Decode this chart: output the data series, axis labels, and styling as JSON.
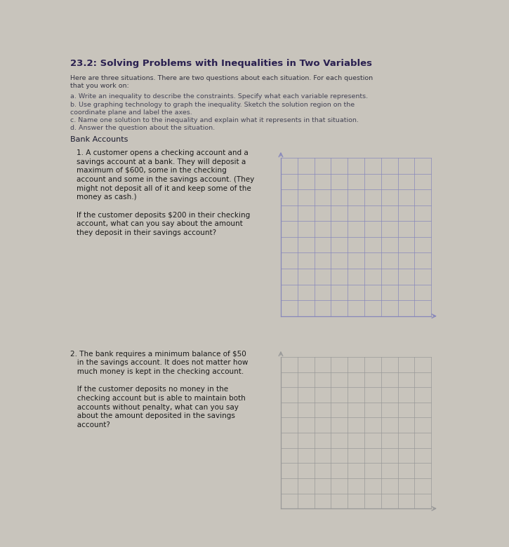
{
  "bg_color": "#c8c4bc",
  "paper_color": "#ededea",
  "title": "23.2: Solving Problems with Inequalities in Two Variables",
  "intro_line1": "Here are three situations. There are two questions about each situation. For each question",
  "intro_line2": "that you work on:",
  "item_a": "a. Write an inequality to describe the constraints. Specify what each variable represents.",
  "item_b1": "b. Use graphing technology to graph the inequality. Sketch the solution region on the",
  "item_b2": "coordinate plane and label the axes.",
  "item_c": "c. Name one solution to the inequality and explain what it represents in that situation.",
  "item_d": "d. Answer the question about the situation.",
  "section": "Bank Accounts",
  "q1_lines": [
    "1. A customer opens a checking account and a",
    "savings account at a bank. They will deposit a",
    "maximum of $600, some in the checking",
    "account and some in the savings account. (They",
    "might not deposit all of it and keep some of the",
    "money as cash.)",
    "",
    "If the customer deposits $200 in their checking",
    "account, what can you say about the amount",
    "they deposit in their savings account?"
  ],
  "q2_lines": [
    "2. The bank requires a minimum balance of $50",
    "   in the savings account. It does not matter how",
    "   much money is kept in the checking account.",
    "",
    "   If the customer deposits no money in the",
    "   checking account but is able to maintain both",
    "   accounts without penalty, what can you say",
    "   about the amount deposited in the savings",
    "   account?"
  ],
  "grid1_color": "#8888bb",
  "grid2_color": "#999999",
  "grid_rows": 10,
  "grid_cols": 9
}
